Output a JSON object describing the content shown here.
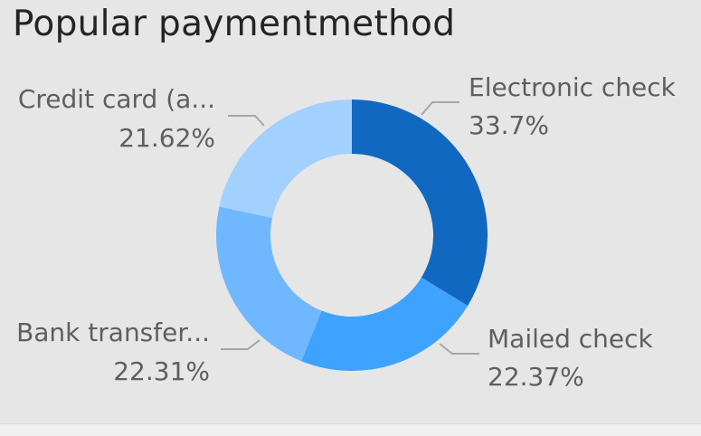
{
  "title": "Popular paymentmethod",
  "chart_data": {
    "type": "pie",
    "variant": "donut",
    "title": "Popular paymentmethod",
    "series": [
      {
        "name": "Electronic check",
        "label": "Electronic check",
        "value": 33.7,
        "value_label": "33.7%",
        "color": "#1168c0"
      },
      {
        "name": "Mailed check",
        "label": "Mailed check",
        "value": 22.37,
        "value_label": "22.37%",
        "color": "#3ea2ff"
      },
      {
        "name": "Bank transfer (automatic)",
        "label": "Bank transfer...",
        "value": 22.31,
        "value_label": "22.31%",
        "color": "#6fb8ff"
      },
      {
        "name": "Credit card (automatic)",
        "label": "Credit card (a...",
        "value": 21.62,
        "value_label": "21.62%",
        "color": "#a2d0ff"
      }
    ]
  }
}
